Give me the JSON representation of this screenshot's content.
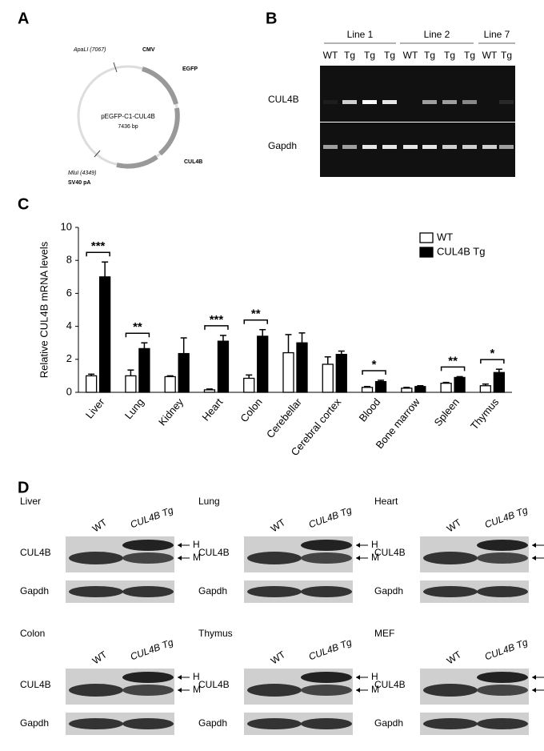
{
  "panel_labels": [
    "A",
    "B",
    "C",
    "D"
  ],
  "plasmid": {
    "name": "pEGFP-C1-CUL4B",
    "size": "7436 bp",
    "features": [
      "CMV",
      "EGFP",
      "CUL4B",
      "SV40 pA"
    ],
    "sites": [
      "ApaLI (7067)",
      "MluI (4349)"
    ]
  },
  "gel": {
    "groups": [
      "Line 1",
      "Line 2",
      "Line 7"
    ],
    "lanes": [
      "WT",
      "Tg",
      "Tg",
      "Tg",
      "WT",
      "Tg",
      "Tg",
      "Tg",
      "WT",
      "Tg"
    ],
    "rows": [
      "CUL4B",
      "Gapdh"
    ]
  },
  "chart_data": {
    "type": "bar",
    "ylabel": "Relative CUL4B mRNA levels",
    "categories": [
      "Liver",
      "Lung",
      "Kidney",
      "Heart",
      "Colon",
      "Cerebellar",
      "Cerebral cortex",
      "Blood",
      "Bone marrow",
      "Spleen",
      "Thymus"
    ],
    "series": [
      {
        "name": "WT",
        "color": "#ffffff",
        "values": [
          1.0,
          1.0,
          0.95,
          0.15,
          0.85,
          2.4,
          1.7,
          0.3,
          0.25,
          0.55,
          0.4
        ],
        "errors": [
          0.1,
          0.35,
          0.05,
          0.05,
          0.2,
          1.1,
          0.45,
          0.05,
          0.05,
          0.05,
          0.1
        ]
      },
      {
        "name": "CUL4B Tg",
        "color": "#000000",
        "values": [
          7.0,
          2.65,
          2.35,
          3.1,
          3.4,
          3.0,
          2.3,
          0.65,
          0.35,
          0.9,
          1.2
        ],
        "errors": [
          0.9,
          0.35,
          0.95,
          0.35,
          0.4,
          0.6,
          0.2,
          0.08,
          0.05,
          0.05,
          0.2
        ]
      }
    ],
    "significance": [
      "***",
      "**",
      null,
      "***",
      "**",
      null,
      null,
      "*",
      null,
      "**",
      "*"
    ],
    "ylim": [
      0,
      10
    ],
    "yticks": [
      0,
      2,
      4,
      6,
      8,
      10
    ],
    "legend": "upper right"
  },
  "western": {
    "columns": [
      "WT",
      "CUL4B Tg"
    ],
    "rows": [
      "CUL4B",
      "Gapdh"
    ],
    "arrows": [
      "H",
      "M"
    ],
    "tissues": [
      "Liver",
      "Lung",
      "Heart",
      "Colon",
      "Thymus",
      "MEF"
    ]
  }
}
